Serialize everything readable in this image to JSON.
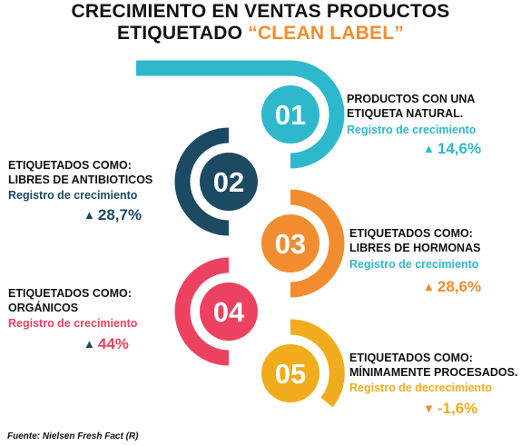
{
  "title": {
    "line1": "CRECIMIENTO EN VENTAS PRODUCTOS",
    "line2_prefix": "ETIQUETADO ",
    "line2_highlight": "“CLEAN LABEL”"
  },
  "colors": {
    "cyan": "#2db9cb",
    "navy": "#1c4a63",
    "orange": "#f18d2f",
    "red": "#ec4260",
    "yellow": "#f0ac1c"
  },
  "items": [
    {
      "num": "01",
      "label1": "PRODUCTOS CON UNA",
      "label2": "ETIQUETA NATURAL.",
      "registro": "Registro de crecimiento",
      "value": "14,6%",
      "direction": "up",
      "color": "#2db9cb"
    },
    {
      "num": "02",
      "label1": "ETIQUETADOS COMO:",
      "label2": "LIBRES DE ANTIBIOTICOS",
      "registro": "Registro de crecimiento",
      "value": "28,7%",
      "direction": "up",
      "color": "#1c4a63"
    },
    {
      "num": "03",
      "label1": "ETIQUETADOS COMO:",
      "label2": "LIBRES DE HORMONAS",
      "registro": "Registro de crecimiento",
      "value": "28,6%",
      "direction": "up",
      "color": "#f18d2f"
    },
    {
      "num": "04",
      "label1": "ETIQUETADOS COMO:",
      "label2": "ORGÁNICOS",
      "registro": "Registro de crecimiento",
      "value": "44%",
      "direction": "up",
      "color": "#ec4260"
    },
    {
      "num": "05",
      "label1": "ETIQUETADOS COMO:",
      "label2": "MÍNIMAMENTE PROCESADOS.",
      "registro": "Registro de decrecimiento",
      "value": "-1,6%",
      "direction": "down",
      "color": "#f0ac1c"
    }
  ],
  "source": "Fuente: Nielsen Fresh Fact (R)",
  "arrow_icons": {
    "up": "arrow-up-icon",
    "down": "arrow-down-icon"
  }
}
